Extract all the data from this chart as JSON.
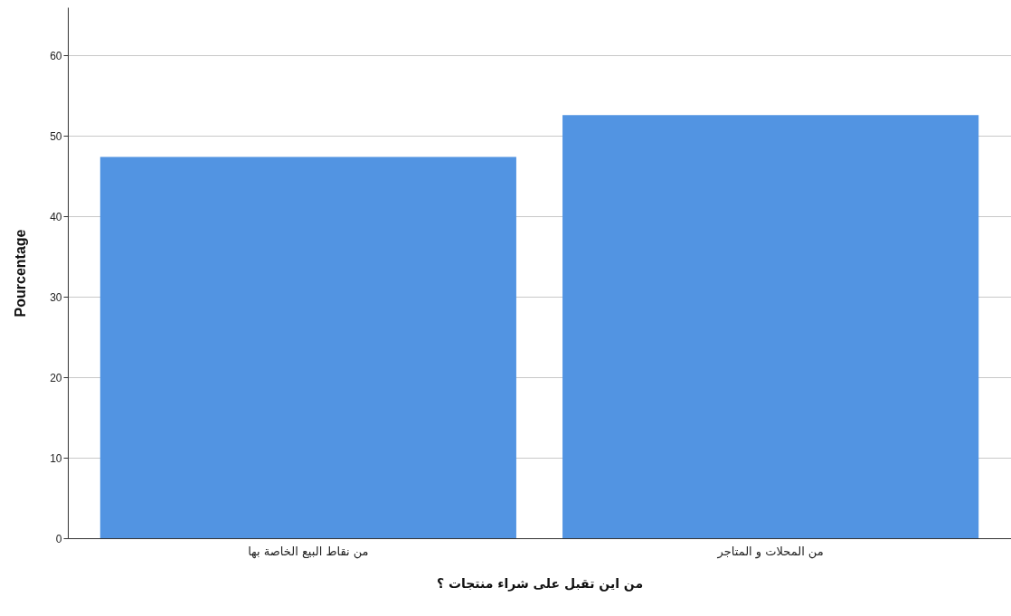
{
  "chart_data": {
    "type": "bar",
    "xlabel": "من اين تقبل على شراء منتجات ؟",
    "ylabel": "Pourcentage",
    "categories": [
      "من نقاط البيع الخاصة بها",
      "من المحلات و المتاجر"
    ],
    "values": [
      47.4,
      52.6
    ],
    "color": "#5294e2",
    "ylim": [
      0,
      66
    ],
    "yticks": [
      0,
      10,
      20,
      30,
      40,
      50,
      60
    ],
    "grid": "y"
  }
}
